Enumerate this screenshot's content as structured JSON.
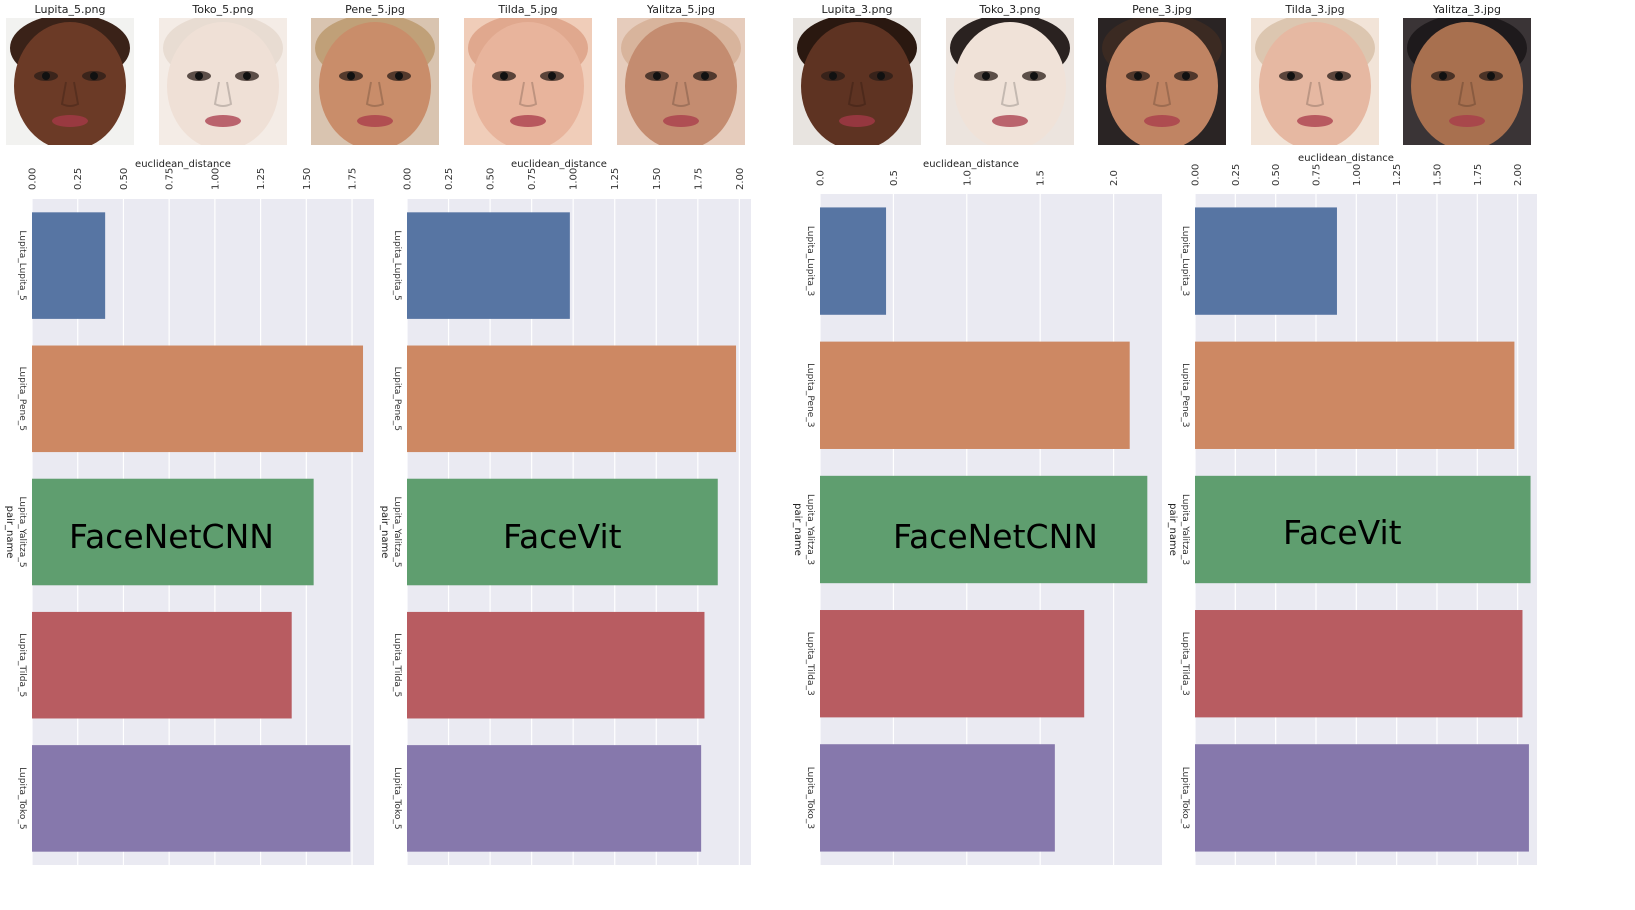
{
  "faces_left": [
    {
      "label": "Lupita_5.png",
      "skin": "#6b3a26",
      "hair": "#3a2218",
      "bg": "#f2f2f0"
    },
    {
      "label": "Toko_5.png",
      "skin": "#efe0d6",
      "hair": "#e8dcd2",
      "bg": "#f4ece6"
    },
    {
      "label": "Pene_5.jpg",
      "skin": "#c98d6a",
      "hair": "#c0a078",
      "bg": "#d9c4b0"
    },
    {
      "label": "Tilda_5.jpg",
      "skin": "#e8b49c",
      "hair": "#e0a88e",
      "bg": "#f0cdb9"
    },
    {
      "label": "Yalitza_5.jpg",
      "skin": "#c48c70",
      "hair": "#d8b49c",
      "bg": "#e6ccbc"
    }
  ],
  "faces_right": [
    {
      "label": "Lupita_3.png",
      "skin": "#5e3322",
      "hair": "#2a1810",
      "bg": "#e8e4e0"
    },
    {
      "label": "Toko_3.png",
      "skin": "#f0e2d8",
      "hair": "#2a2220",
      "bg": "#ece4de"
    },
    {
      "label": "Pene_3.jpg",
      "skin": "#c08463",
      "hair": "#3b2a22",
      "bg": "#2a2424"
    },
    {
      "label": "Tilda_3.jpg",
      "skin": "#e6b8a2",
      "hair": "#dcc6b0",
      "bg": "#f2e4d8"
    },
    {
      "label": "Yalitza_3.jpg",
      "skin": "#a8704f",
      "hair": "#1e1a1c",
      "bg": "#3a3436"
    }
  ],
  "overlay_labels": [
    "FaceNetCNN",
    "FaceVit",
    "FaceNetCNN",
    "FaceVit"
  ],
  "colors": [
    "#5775a3",
    "#cd8863",
    "#5f9e6f",
    "#b85c61",
    "#8678ac"
  ],
  "chart_data": [
    {
      "type": "bar",
      "orientation": "horizontal",
      "xlabel": "euclidean_distance",
      "ylabel": "pair_name",
      "xlim": [
        0,
        1.87
      ],
      "xticks": [
        "0.00",
        "0.25",
        "0.50",
        "0.75",
        "1.00",
        "1.25",
        "1.50",
        "1.75"
      ],
      "categories": [
        "Lupita_Lupita_5",
        "Lupita_Pene_5",
        "Lupita_Yalitza_5",
        "Lupita_Tilda_5",
        "Lupita_Toko_5"
      ],
      "values": [
        0.4,
        1.81,
        1.54,
        1.42,
        1.74
      ]
    },
    {
      "type": "bar",
      "orientation": "horizontal",
      "xlabel": "euclidean_distance",
      "ylabel": "pair_name",
      "xlim": [
        0,
        2.07
      ],
      "xticks": [
        "0.00",
        "0.25",
        "0.50",
        "0.75",
        "1.00",
        "1.25",
        "1.50",
        "1.75",
        "2.00"
      ],
      "categories": [
        "Lupita_Lupita_5",
        "Lupita_Pene_5",
        "Lupita_Yalitza_5",
        "Lupita_Tilda_5",
        "Lupita_Toko_5"
      ],
      "values": [
        0.98,
        1.98,
        1.87,
        1.79,
        1.77
      ]
    },
    {
      "type": "bar",
      "orientation": "horizontal",
      "xlabel": "euclidean_distance",
      "ylabel": "pair_name",
      "xlim": [
        0,
        2.33
      ],
      "xticks": [
        "0.0",
        "0.5",
        "1.0",
        "1.5",
        "2.0"
      ],
      "categories": [
        "Lupita_Lupita_3",
        "Lupita_Pene_3",
        "Lupita_Yalitza_3",
        "Lupita_Tilda_3",
        "Lupita_Toko_3"
      ],
      "values": [
        0.45,
        2.11,
        2.23,
        1.8,
        1.6
      ]
    },
    {
      "type": "bar",
      "orientation": "horizontal",
      "xlabel": "euclidean_distance",
      "ylabel": "pair_name",
      "xlim": [
        0,
        2.12
      ],
      "xticks": [
        "0.00",
        "0.25",
        "0.50",
        "0.75",
        "1.00",
        "1.25",
        "1.50",
        "1.75",
        "2.00"
      ],
      "categories": [
        "Lupita_Lupita_3",
        "Lupita_Pene_3",
        "Lupita_Yalitza_3",
        "Lupita_Tilda_3",
        "Lupita_Toko_3"
      ],
      "values": [
        0.88,
        1.98,
        2.08,
        2.03,
        2.07
      ]
    }
  ]
}
